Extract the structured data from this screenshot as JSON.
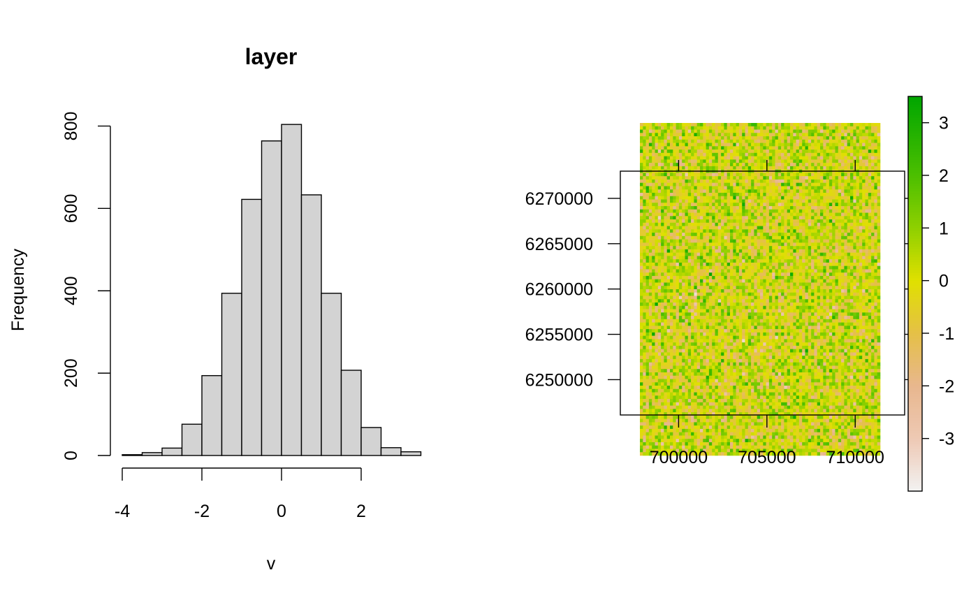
{
  "chart_data": [
    {
      "type": "bar",
      "title": "layer",
      "xlabel": "v",
      "ylabel": "Frequency",
      "bin_width": 0.5,
      "bin_starts": [
        -4,
        -3.5,
        -3,
        -2.5,
        -2,
        -1.5,
        -1,
        -0.5,
        0,
        0.5,
        1,
        1.5,
        2,
        2.5,
        3
      ],
      "values": [
        2,
        7,
        18,
        76,
        194,
        394,
        622,
        764,
        804,
        633,
        394,
        207,
        68,
        19,
        9
      ],
      "bar_fill": "#d3d3d3",
      "xlim": [
        -4,
        3.5
      ],
      "ylim": [
        0,
        800
      ],
      "x_ticks": [
        -4,
        -2,
        0,
        2
      ],
      "x_tick_labels": [
        "-4",
        "-2",
        "0",
        "2"
      ],
      "y_ticks": [
        0,
        200,
        400,
        600,
        800
      ],
      "y_tick_labels": [
        "0",
        "200",
        "400",
        "600",
        "800"
      ],
      "grid": false
    },
    {
      "type": "heatmap",
      "title": "",
      "xlabel": "",
      "ylabel": "",
      "raster_columns": 80,
      "raster_rows": 100,
      "value_range": [
        -4,
        3.5
      ],
      "xlim": [
        696700,
        712800
      ],
      "ylim": [
        6246100,
        6273000
      ],
      "x_ticks": [
        700000,
        705000,
        710000
      ],
      "x_tick_labels": [
        "700000",
        "705000",
        "710000"
      ],
      "y_ticks": [
        6250000,
        6255000,
        6260000,
        6265000,
        6270000
      ],
      "y_tick_labels": [
        "6250000",
        "6255000",
        "6260000",
        "6265000",
        "6270000"
      ],
      "legend": {
        "placement": "right",
        "range": [
          -4,
          3.5
        ],
        "ticks": [
          -3,
          -2,
          -1,
          0,
          1,
          2,
          3
        ],
        "tick_labels": [
          "-3",
          "-2",
          "-1",
          "0",
          "1",
          "2",
          "3"
        ],
        "color_stops": [
          {
            "value": -4,
            "color": "#f2f2f2"
          },
          {
            "value": -3,
            "color": "#eec9b4"
          },
          {
            "value": -2,
            "color": "#e8b78e"
          },
          {
            "value": -1,
            "color": "#e5c047"
          },
          {
            "value": 0,
            "color": "#e0e000"
          },
          {
            "value": 1,
            "color": "#8fd000"
          },
          {
            "value": 2,
            "color": "#4cbf00"
          },
          {
            "value": 3.5,
            "color": "#00a600"
          }
        ]
      }
    }
  ]
}
